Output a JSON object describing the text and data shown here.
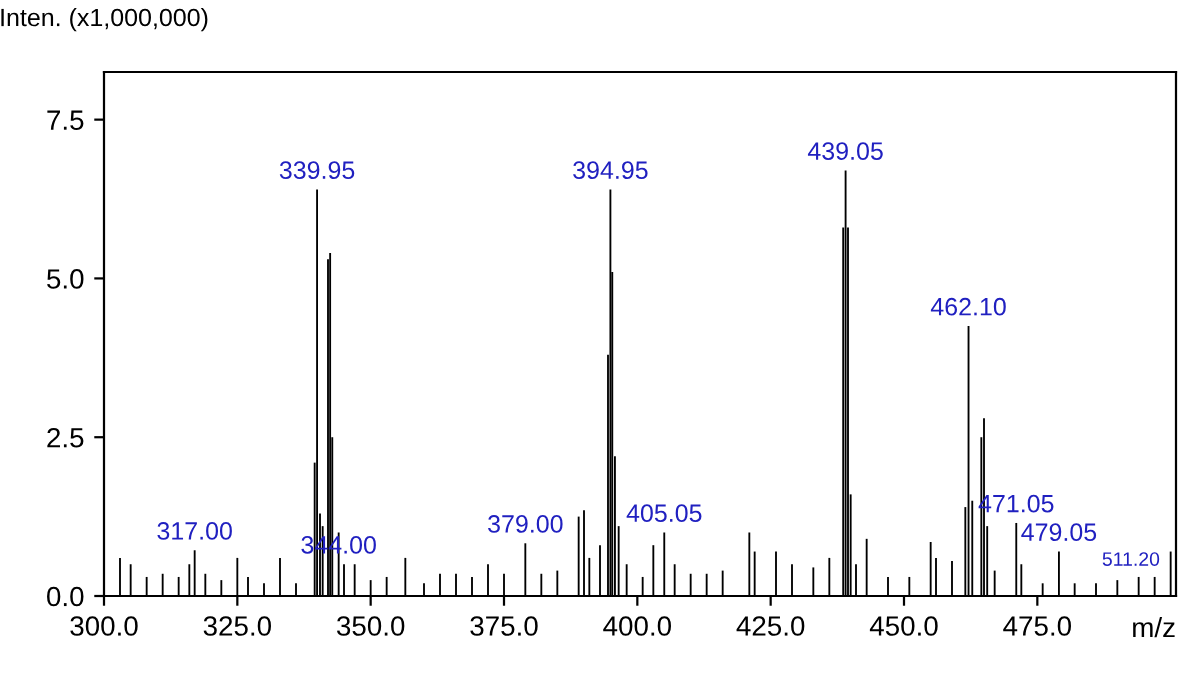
{
  "chart_data": {
    "type": "bar",
    "ylabel": "Inten. (x1,000,000)",
    "xlabel": "m/z",
    "x": [
      303,
      305,
      308,
      311,
      314,
      316,
      317,
      319,
      322,
      325,
      327,
      330,
      333,
      336,
      339.5,
      339.95,
      340.5,
      341,
      342,
      342.4,
      342.8,
      344,
      345,
      347,
      350,
      353,
      356.5,
      360,
      363,
      366,
      369,
      372,
      375,
      379,
      382,
      385,
      389,
      390,
      391,
      393,
      394.5,
      394.95,
      395.3,
      395.8,
      396.5,
      398,
      401,
      403,
      405.05,
      407,
      410,
      413,
      416,
      421,
      422,
      426,
      429,
      433,
      436,
      438.6,
      439.05,
      439.5,
      440,
      441,
      443,
      447,
      451,
      455,
      456,
      459,
      461.5,
      462.1,
      462.8,
      464.5,
      465,
      465.6,
      467,
      471.05,
      472,
      476,
      479.05,
      482,
      486,
      490,
      494,
      497,
      500
    ],
    "values": [
      0.6,
      0.5,
      0.3,
      0.35,
      0.3,
      0.5,
      0.72,
      0.35,
      0.25,
      0.6,
      0.3,
      0.2,
      0.6,
      0.2,
      2.1,
      6.4,
      1.3,
      1.1,
      5.3,
      5.4,
      2.5,
      1.0,
      0.5,
      0.5,
      0.25,
      0.3,
      0.6,
      0.2,
      0.35,
      0.35,
      0.3,
      0.5,
      0.35,
      0.83,
      0.35,
      0.4,
      1.25,
      1.35,
      0.6,
      0.8,
      3.8,
      6.4,
      5.1,
      2.2,
      1.1,
      0.5,
      0.3,
      0.8,
      1.0,
      0.5,
      0.35,
      0.35,
      0.4,
      1.0,
      0.7,
      0.7,
      0.5,
      0.45,
      0.6,
      5.8,
      6.7,
      5.8,
      1.6,
      0.5,
      0.9,
      0.3,
      0.3,
      0.85,
      0.6,
      0.55,
      1.4,
      4.25,
      1.5,
      2.5,
      2.8,
      1.1,
      0.4,
      1.15,
      0.5,
      0.2,
      0.7,
      0.2,
      0.2,
      0.25,
      0.3,
      0.3,
      0.7
    ],
    "color": "#000000",
    "xlim": [
      300,
      501
    ],
    "ylim": [
      0,
      8.25
    ],
    "xticks": [
      {
        "value": 300,
        "label": "300.0"
      },
      {
        "value": 325,
        "label": "325.0"
      },
      {
        "value": 350,
        "label": "350.0"
      },
      {
        "value": 375,
        "label": "375.0"
      },
      {
        "value": 400,
        "label": "400.0"
      },
      {
        "value": 425,
        "label": "425.0"
      },
      {
        "value": 450,
        "label": "450.0"
      },
      {
        "value": 475,
        "label": "475.0"
      }
    ],
    "yticks": [
      {
        "value": 0,
        "label": "0.0"
      },
      2.5,
      {
        "value": 5,
        "label": "5.0"
      },
      7.5
    ],
    "grid": false,
    "legend": false,
    "annotations": [
      {
        "text": "317.00",
        "x": 317,
        "y": 0.72
      },
      {
        "text": "339.95",
        "x": 339.95,
        "y": 6.4
      },
      {
        "text": "344.00",
        "x": 344,
        "y": 0.5
      },
      {
        "text": "379.00",
        "x": 379,
        "y": 0.83
      },
      {
        "text": "394.95",
        "x": 394.95,
        "y": 6.4
      },
      {
        "text": "405.05",
        "x": 405.05,
        "y": 1.0
      },
      {
        "text": "439.05",
        "x": 439.05,
        "y": 6.7
      },
      {
        "text": "462.10",
        "x": 462.1,
        "y": 4.25
      },
      {
        "text": "471.05",
        "x": 471.05,
        "y": 1.15
      },
      {
        "text": "479.05",
        "x": 479.05,
        "y": 0.7
      },
      "511.20"
    ]
  }
}
